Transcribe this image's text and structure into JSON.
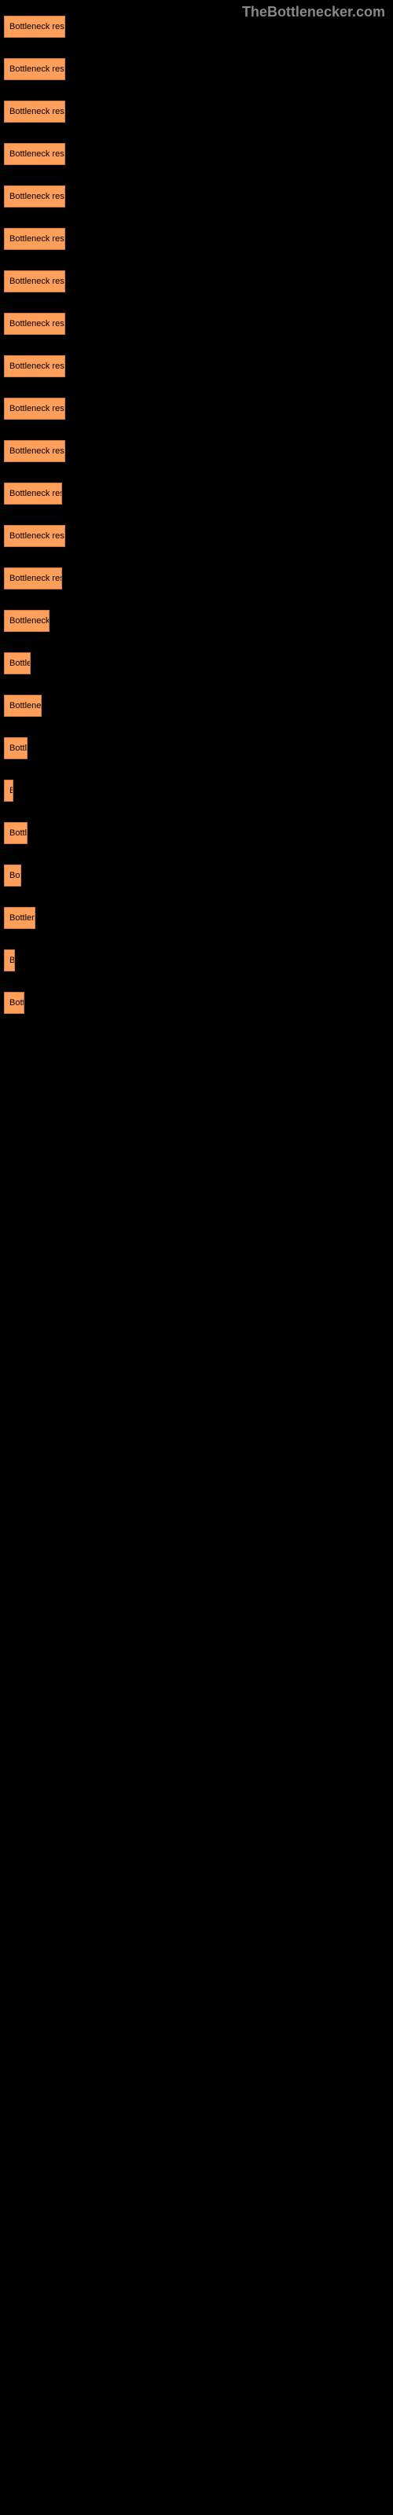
{
  "watermark": "TheBottlenecker.com",
  "chart": {
    "type": "bar",
    "bar_color": "#ff9f5a",
    "bar_border_color": "#cc7a3d",
    "background_color": "#000000",
    "text_color": "#000000",
    "bars": [
      {
        "label": "Bottleneck result",
        "width": 78
      },
      {
        "label": "Bottleneck result",
        "width": 78
      },
      {
        "label": "Bottleneck result",
        "width": 78
      },
      {
        "label": "Bottleneck result",
        "width": 78
      },
      {
        "label": "Bottleneck result",
        "width": 78
      },
      {
        "label": "Bottleneck result",
        "width": 78
      },
      {
        "label": "Bottleneck result",
        "width": 78
      },
      {
        "label": "Bottleneck result",
        "width": 78
      },
      {
        "label": "Bottleneck result",
        "width": 78
      },
      {
        "label": "Bottleneck result",
        "width": 78
      },
      {
        "label": "Bottleneck result",
        "width": 78
      },
      {
        "label": "Bottleneck resul",
        "width": 74
      },
      {
        "label": "Bottleneck result",
        "width": 78
      },
      {
        "label": "Bottleneck resul",
        "width": 74
      },
      {
        "label": "Bottleneck r",
        "width": 58
      },
      {
        "label": "Bottlen",
        "width": 34
      },
      {
        "label": "Bottleneck",
        "width": 48
      },
      {
        "label": "Bottle",
        "width": 30
      },
      {
        "label": "B",
        "width": 12
      },
      {
        "label": "Bottle",
        "width": 30
      },
      {
        "label": "Bott",
        "width": 22
      },
      {
        "label": "Bottlene",
        "width": 40
      },
      {
        "label": "B",
        "width": 14
      },
      {
        "label": "Bottl",
        "width": 26
      }
    ]
  }
}
